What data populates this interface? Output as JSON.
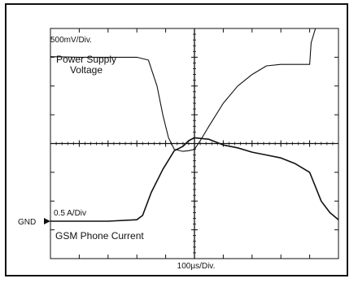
{
  "chart_data": {
    "type": "line",
    "x_scale_label": "100µs/Div.",
    "top_scale_label": "500mV/Div.",
    "bottom_scale_label": "0.5 A/Div",
    "gnd_label": "GND",
    "grid": {
      "cols": 10,
      "rows": 8
    },
    "series": [
      {
        "name": "Power Supply Voltage",
        "name_lines": [
          "Power Supply",
          "Voltage"
        ],
        "color": "#111111",
        "x_div": [
          0.0,
          1.0,
          2.0,
          3.0,
          3.4,
          3.7,
          3.9,
          4.1,
          4.3,
          4.6,
          4.8,
          5.0,
          5.2,
          5.5,
          6.0,
          6.5,
          7.0,
          7.5,
          8.0,
          8.5,
          9.0,
          9.05,
          9.2
        ],
        "y_div": [
          7.02,
          7.0,
          7.0,
          7.0,
          6.9,
          6.0,
          5.0,
          4.2,
          3.8,
          3.73,
          3.75,
          3.8,
          4.1,
          4.6,
          5.4,
          6.0,
          6.4,
          6.7,
          6.75,
          6.75,
          6.75,
          7.5,
          8.0
        ]
      },
      {
        "name": "GSM Phone Current",
        "name_lines": [
          "GSM Phone Current"
        ],
        "color": "#111111",
        "x_div": [
          0.0,
          1.0,
          2.0,
          3.0,
          3.2,
          3.5,
          3.9,
          4.3,
          4.6,
          4.8,
          5.0,
          5.5,
          6.0,
          6.5,
          7.0,
          7.5,
          8.0,
          8.5,
          9.0,
          9.4,
          9.7,
          10.0
        ],
        "y_div": [
          1.3,
          1.3,
          1.3,
          1.35,
          1.5,
          2.3,
          3.1,
          3.75,
          3.9,
          4.1,
          4.2,
          4.15,
          3.95,
          3.85,
          3.7,
          3.6,
          3.5,
          3.3,
          3.0,
          2.0,
          1.6,
          1.35
        ]
      }
    ]
  }
}
